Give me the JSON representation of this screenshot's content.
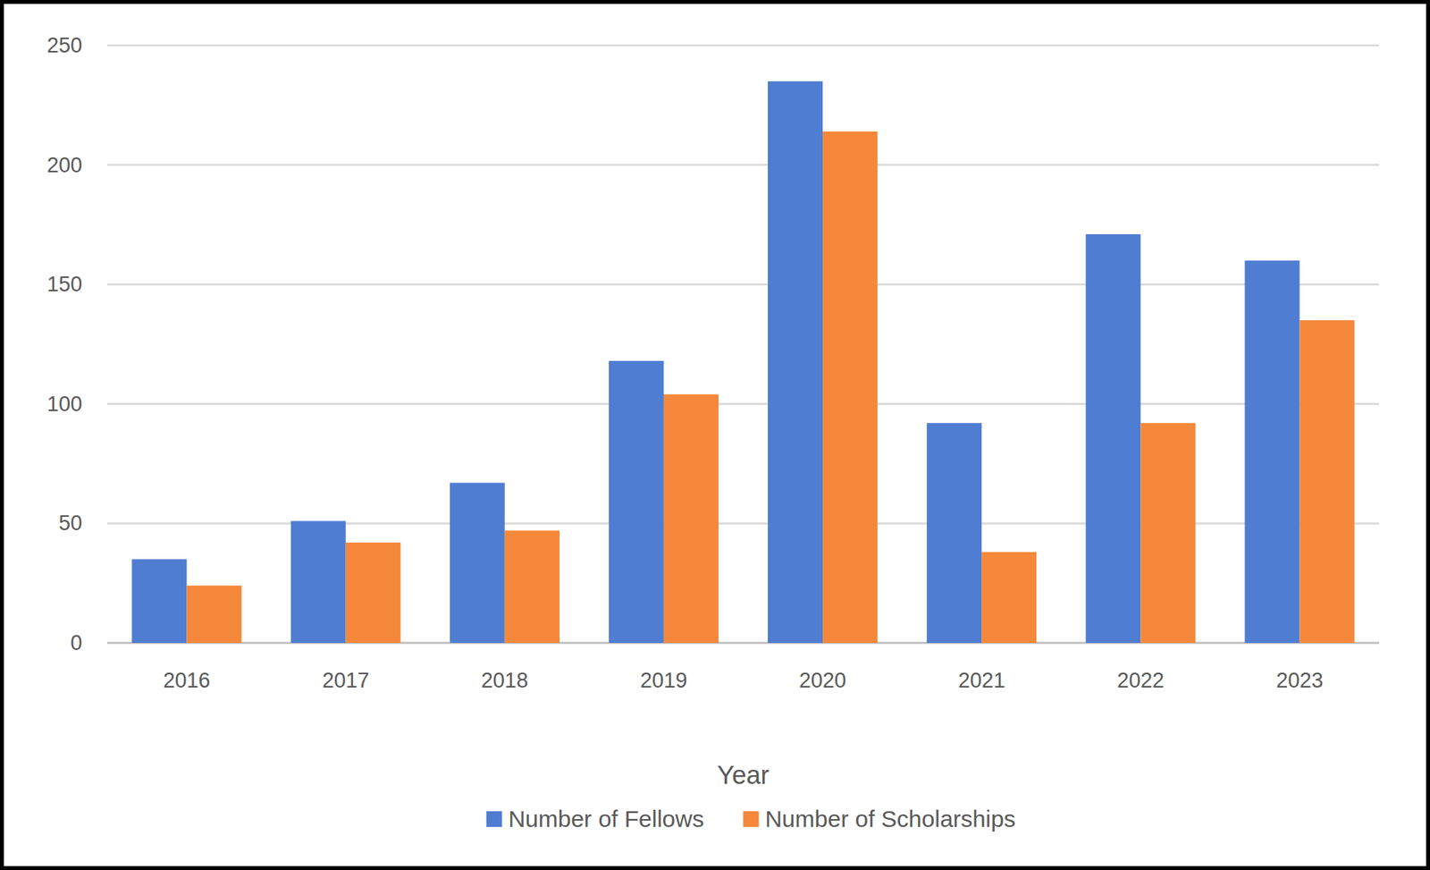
{
  "chart_data": {
    "type": "bar",
    "x_label": "Year",
    "categories": [
      "2016",
      "2017",
      "2018",
      "2019",
      "2020",
      "2021",
      "2022",
      "2023"
    ],
    "series": [
      {
        "name": "Number of Fellows",
        "color": "#4e7dd1",
        "values": [
          35,
          51,
          67,
          118,
          235,
          92,
          171,
          160
        ]
      },
      {
        "name": "Number of Scholarships",
        "color": "#f5883a",
        "values": [
          24,
          42,
          47,
          104,
          214,
          38,
          92,
          135
        ]
      }
    ],
    "ylim": [
      0,
      250
    ],
    "yticks": [
      0,
      50,
      100,
      150,
      200,
      250
    ],
    "grid": true,
    "legend": "bottom"
  }
}
